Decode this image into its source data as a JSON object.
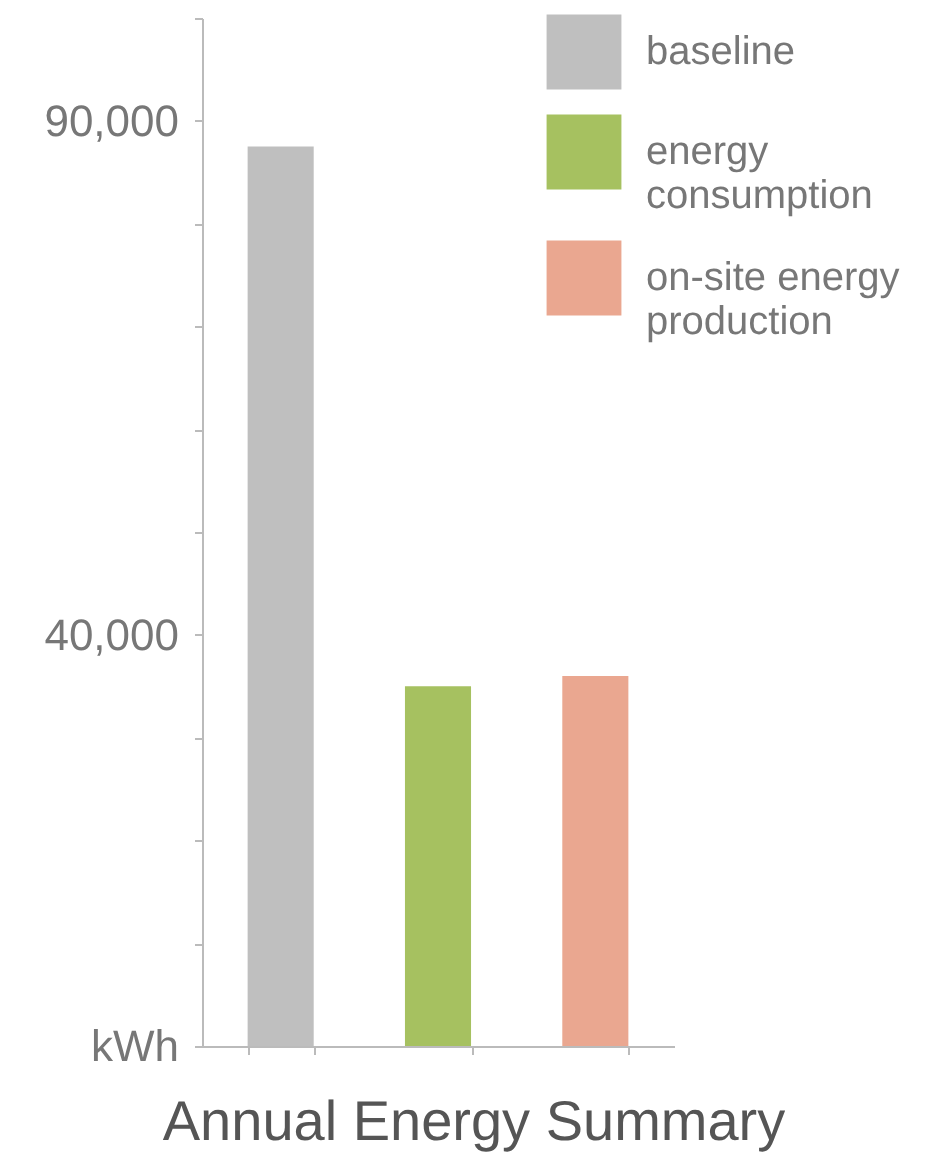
{
  "chart_data": {
    "type": "bar",
    "title": "Annual Energy Summary",
    "categories": [
      null,
      null,
      null
    ],
    "series": [
      {
        "name": "baseline",
        "color": "#bfbfbf",
        "values": [
          87500,
          null,
          null
        ]
      },
      {
        "name": "energy consumption",
        "color": "#a6c160",
        "values": [
          null,
          35000,
          null
        ]
      },
      {
        "name": "on-site energy production",
        "color": "#eaa790",
        "values": [
          null,
          null,
          36000
        ]
      }
    ],
    "ylim": [
      0,
      100000
    ],
    "yticks": [
      {
        "value": 0,
        "label": "kWh"
      },
      {
        "value": 10000,
        "label": null
      },
      {
        "value": 20000,
        "label": null
      },
      {
        "value": 30000,
        "label": null
      },
      {
        "value": 40000,
        "label": "40,000"
      },
      {
        "value": 50000,
        "label": null
      },
      {
        "value": 60000,
        "label": null
      },
      {
        "value": 70000,
        "label": null
      },
      {
        "value": 80000,
        "label": null
      },
      {
        "value": 90000,
        "label": "90,000"
      },
      {
        "value": 100000,
        "label": null
      }
    ],
    "grid": false,
    "legend": "top right"
  }
}
